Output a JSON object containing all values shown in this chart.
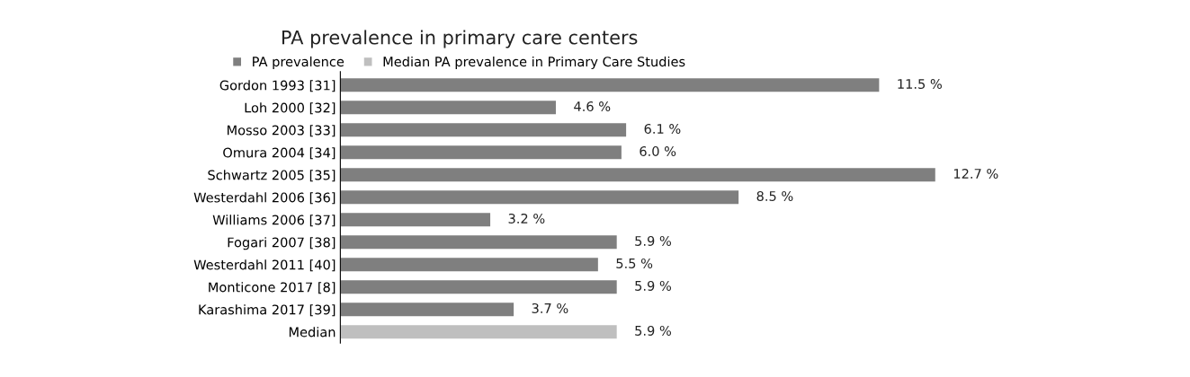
{
  "chart_data": {
    "type": "bar",
    "title": "PA prevalence in primary care centers",
    "orientation": "horizontal",
    "categories": [
      "Gordon 1993 [31]",
      "Loh 2000 [32]",
      "Mosso 2003 [33]",
      "Omura 2004 [34]",
      "Schwartz 2005 [35]",
      "Westerdahl 2006 [36]",
      "Williams 2006 [37]",
      "Fogari 2007 [38]",
      "Westerdahl 2011 [40]",
      "Monticone 2017 [8]",
      "Karashima 2017 [39]",
      "Median"
    ],
    "series": [
      {
        "name": "PA prevalence",
        "color": "#7f7f7f",
        "values": [
          11.5,
          4.6,
          6.1,
          6.0,
          12.7,
          8.5,
          3.2,
          5.9,
          5.5,
          5.9,
          3.7,
          null
        ],
        "value_labels": [
          "11.5 %",
          "4.6 %",
          "6.1 %",
          "6.0 %",
          "12.7 %",
          "8.5 %",
          "3.2 %",
          "5.9 %",
          "5.5 %",
          "5.9 %",
          "3.7 %",
          null
        ]
      },
      {
        "name": "Median PA prevalence in Primary Care Studies",
        "color": "#bfbfbf",
        "values": [
          null,
          null,
          null,
          null,
          null,
          null,
          null,
          null,
          null,
          null,
          null,
          5.9
        ],
        "value_labels": [
          null,
          null,
          null,
          null,
          null,
          null,
          null,
          null,
          null,
          null,
          null,
          "5.9 %"
        ]
      }
    ],
    "legend": "top",
    "grid": false,
    "tick_labels": "y"
  }
}
